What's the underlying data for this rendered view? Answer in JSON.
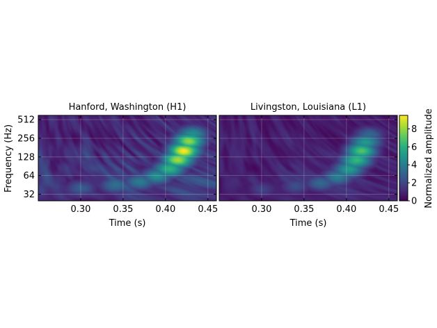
{
  "chart_data": [
    {
      "type": "heatmap",
      "title": "Hanford, Washington (H1)",
      "xlabel": "Time (s)",
      "ylabel": "Frequency (Hz)",
      "xlim": [
        0.25,
        0.46
      ],
      "ylim": [
        25,
        600
      ],
      "y_scale": "log2",
      "x_ticks": [
        "0.30",
        "0.35",
        "0.40",
        "0.45"
      ],
      "x_tick_values": [
        0.3,
        0.35,
        0.4,
        0.45
      ],
      "y_ticks": [
        "32",
        "64",
        "128",
        "256",
        "512"
      ],
      "y_tick_values": [
        32,
        64,
        128,
        256,
        512
      ],
      "grid": true,
      "features": {
        "chirp": [
          {
            "t": 0.3,
            "f": 40,
            "amp": 2.5
          },
          {
            "t": 0.34,
            "f": 44,
            "amp": 3.0
          },
          {
            "t": 0.37,
            "f": 50,
            "amp": 3.5
          },
          {
            "t": 0.39,
            "f": 62,
            "amp": 4.5
          },
          {
            "t": 0.405,
            "f": 82,
            "amp": 6.0
          },
          {
            "t": 0.415,
            "f": 115,
            "amp": 8.0
          },
          {
            "t": 0.422,
            "f": 160,
            "amp": 9.0
          },
          {
            "t": 0.428,
            "f": 230,
            "amp": 7.5
          },
          {
            "t": 0.432,
            "f": 300,
            "amp": 4.5
          }
        ],
        "noise_level": 2.2
      }
    },
    {
      "type": "heatmap",
      "title": "Livingston, Louisiana (L1)",
      "xlabel": "Time (s)",
      "ylabel": "",
      "xlim": [
        0.25,
        0.46
      ],
      "ylim": [
        25,
        600
      ],
      "y_scale": "log2",
      "x_ticks": [
        "0.30",
        "0.35",
        "0.40",
        "0.45"
      ],
      "x_tick_values": [
        0.3,
        0.35,
        0.4,
        0.45
      ],
      "grid": true,
      "features": {
        "chirp": [
          {
            "t": 0.3,
            "f": 38,
            "amp": 1.6
          },
          {
            "t": 0.34,
            "f": 42,
            "amp": 2.0
          },
          {
            "t": 0.37,
            "f": 48,
            "amp": 2.8
          },
          {
            "t": 0.39,
            "f": 60,
            "amp": 3.8
          },
          {
            "t": 0.403,
            "f": 80,
            "amp": 5.0
          },
          {
            "t": 0.412,
            "f": 112,
            "amp": 6.2
          },
          {
            "t": 0.418,
            "f": 160,
            "amp": 6.6
          },
          {
            "t": 0.423,
            "f": 220,
            "amp": 5.0
          },
          {
            "t": 0.427,
            "f": 290,
            "amp": 3.0
          }
        ],
        "noise_level": 1.4
      }
    }
  ],
  "colorbar": {
    "label": "Normalized amplitude",
    "min": 0,
    "max": 9.5,
    "ticks": [
      "0",
      "2",
      "4",
      "6",
      "8"
    ],
    "tick_values": [
      0,
      2,
      4,
      6,
      8
    ],
    "colormap": "viridis"
  }
}
